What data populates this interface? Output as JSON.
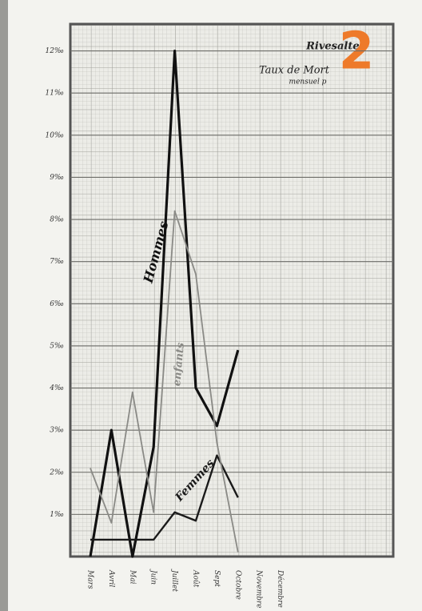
{
  "badge": "2",
  "chart_data": {
    "type": "line",
    "title": "Rivesaltes",
    "subtitle": "Taux de Mort",
    "subtitle2": "mensuel p",
    "categories": [
      "Mars",
      "Avril",
      "Mai",
      "Juin",
      "Juillet",
      "Août",
      "Sept",
      "Octobre",
      "Novembre",
      "Décembre"
    ],
    "series": [
      {
        "name": "Hommes",
        "color": "#111111",
        "values": [
          0,
          3,
          0,
          2.6,
          12,
          4,
          3.1,
          4.9,
          null,
          null
        ]
      },
      {
        "name": "Femmes",
        "color": "#1a1a1a",
        "values": [
          0.4,
          0.4,
          0.4,
          0.4,
          1.05,
          0.85,
          2.4,
          1.4,
          null,
          null
        ]
      },
      {
        "name": "enfants",
        "color": "#8a8a86",
        "values": [
          2.1,
          0.8,
          3.9,
          1.05,
          8.2,
          6.7,
          2.7,
          0.1,
          null,
          null
        ]
      }
    ],
    "ylim": [
      0,
      12.6
    ],
    "yticks": [
      {
        "value": 1,
        "label": "1‰"
      },
      {
        "value": 2,
        "label": "2‰"
      },
      {
        "value": 3,
        "label": "3‰"
      },
      {
        "value": 4,
        "label": "4‰"
      },
      {
        "value": 5,
        "label": "5‰"
      },
      {
        "value": 6,
        "label": "6‰"
      },
      {
        "value": 7,
        "label": "7‰"
      },
      {
        "value": 8,
        "label": "8‰"
      },
      {
        "value": 9,
        "label": "9‰"
      },
      {
        "value": 10,
        "label": "10‰"
      },
      {
        "value": 11,
        "label": "11‰"
      },
      {
        "value": 12,
        "label": "12‰"
      }
    ],
    "grid": true
  }
}
